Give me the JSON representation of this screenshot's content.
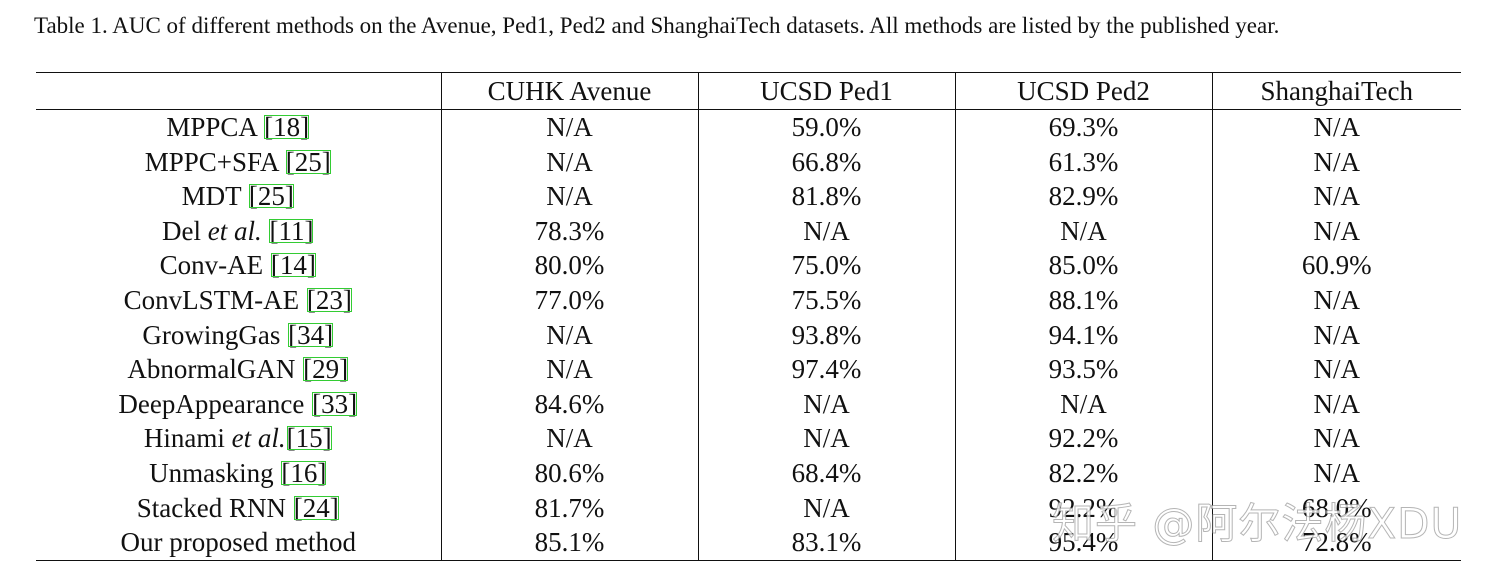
{
  "caption": "Table 1. AUC of different methods on the Avenue, Ped1, Ped2 and ShanghaiTech datasets. All methods are listed by the published year.",
  "headers": [
    "",
    "CUHK Avenue",
    "UCSD Ped1",
    "UCSD Ped2",
    "ShanghaiTech"
  ],
  "rows": [
    {
      "method": "MPPCA",
      "etal": "",
      "cite": "18",
      "values": [
        "N/A",
        "59.0%",
        "69.3%",
        "N/A"
      ],
      "bold": [
        false,
        false,
        false,
        false
      ],
      "method_bold": false
    },
    {
      "method": "MPPC+SFA",
      "etal": "",
      "cite": "25",
      "values": [
        "N/A",
        "66.8%",
        "61.3%",
        "N/A"
      ],
      "bold": [
        false,
        false,
        false,
        false
      ],
      "method_bold": false
    },
    {
      "method": "MDT",
      "etal": "",
      "cite": "25",
      "values": [
        "N/A",
        "81.8%",
        "82.9%",
        "N/A"
      ],
      "bold": [
        false,
        false,
        false,
        false
      ],
      "method_bold": false
    },
    {
      "method": "Del",
      "etal": "et al.",
      "cite": "11",
      "values": [
        "78.3%",
        "N/A",
        "N/A",
        "N/A"
      ],
      "bold": [
        false,
        false,
        false,
        false
      ],
      "method_bold": false
    },
    {
      "method": "Conv-AE",
      "etal": "",
      "cite": "14",
      "values": [
        "80.0%",
        "75.0%",
        "85.0%",
        "60.9%"
      ],
      "bold": [
        false,
        false,
        false,
        false
      ],
      "method_bold": false
    },
    {
      "method": "ConvLSTM-AE",
      "etal": "",
      "cite": "23",
      "values": [
        "77.0%",
        "75.5%",
        "88.1%",
        "N/A"
      ],
      "bold": [
        false,
        false,
        false,
        false
      ],
      "method_bold": false
    },
    {
      "method": "GrowingGas",
      "etal": "",
      "cite": "34",
      "values": [
        "N/A",
        "93.8%",
        "94.1%",
        "N/A"
      ],
      "bold": [
        false,
        false,
        false,
        false
      ],
      "method_bold": false
    },
    {
      "method": "AbnormalGAN",
      "etal": "",
      "cite": "29",
      "values": [
        "N/A",
        "97.4%",
        "93.5%",
        "N/A"
      ],
      "bold": [
        false,
        true,
        false,
        false
      ],
      "method_bold": false
    },
    {
      "method": "DeepAppearance",
      "etal": "",
      "cite": "33",
      "values": [
        "84.6%",
        "N/A",
        "N/A",
        "N/A"
      ],
      "bold": [
        false,
        false,
        false,
        false
      ],
      "method_bold": false
    },
    {
      "method": "Hinami",
      "etal": "et al.",
      "cite": "15",
      "values": [
        "N/A",
        "N/A",
        "92.2%",
        "N/A"
      ],
      "bold": [
        false,
        false,
        false,
        false
      ],
      "method_bold": false
    },
    {
      "method": "Unmasking",
      "etal": "",
      "cite": "16",
      "values": [
        "80.6%",
        "68.4%",
        "82.2%",
        "N/A"
      ],
      "bold": [
        false,
        false,
        false,
        false
      ],
      "method_bold": false
    },
    {
      "method": "Stacked RNN",
      "etal": "",
      "cite": "24",
      "values": [
        "81.7%",
        "N/A",
        "92.2%",
        "68.0%"
      ],
      "bold": [
        false,
        false,
        false,
        false
      ],
      "method_bold": false
    },
    {
      "method": "Our proposed method",
      "etal": "",
      "cite": "",
      "values": [
        "85.1%",
        "83.1%",
        "95.4%",
        "72.8%"
      ],
      "bold": [
        true,
        false,
        true,
        true
      ],
      "method_bold": true
    }
  ],
  "watermark": "知乎 @阿尔法杨XDU"
}
